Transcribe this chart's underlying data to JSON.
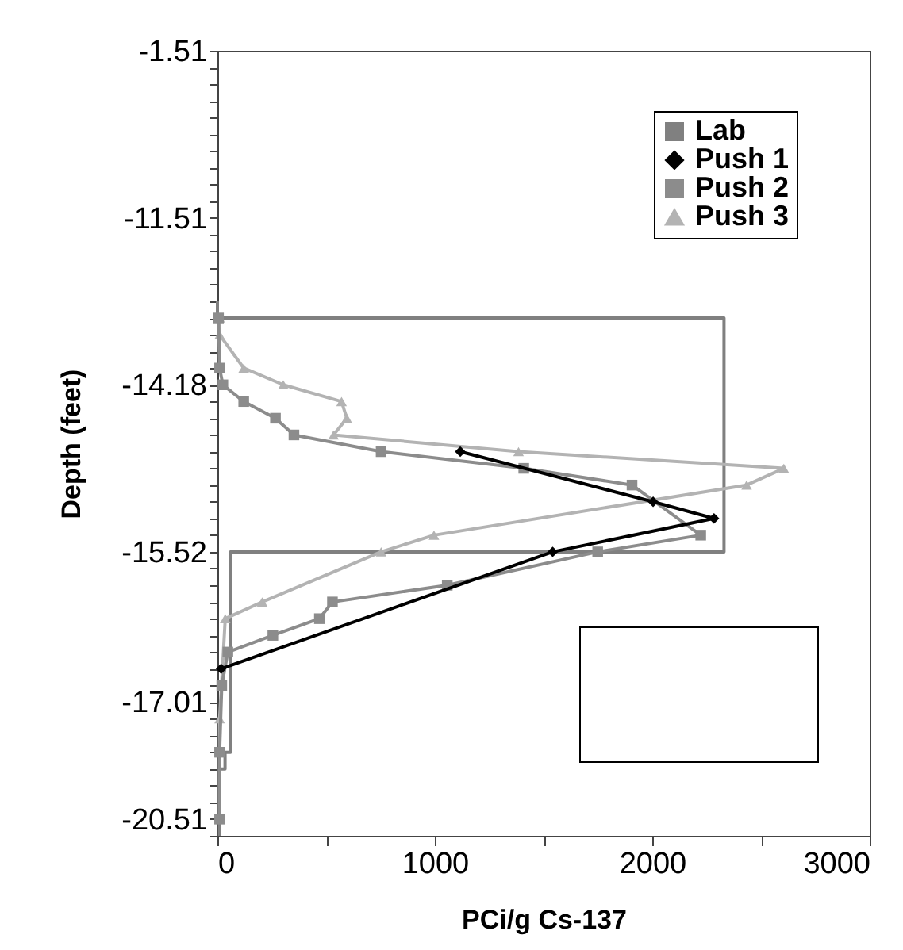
{
  "chart_data": {
    "type": "line",
    "orientation": "horizontal",
    "xlabel": "PCi/g  Cs-137",
    "ylabel": "Depth (feet)",
    "categories": [
      "-1.51",
      null,
      null,
      null,
      null,
      null,
      null,
      null,
      null,
      null,
      "-11.51",
      null,
      null,
      null,
      null,
      null,
      null,
      null,
      null,
      null,
      "-14.18",
      null,
      null,
      null,
      null,
      null,
      null,
      null,
      null,
      null,
      "-15.52",
      null,
      null,
      null,
      null,
      null,
      null,
      null,
      null,
      "-17.01",
      null,
      null,
      null,
      null,
      null,
      null,
      "-20.51",
      null
    ],
    "xlim": [
      0,
      3000
    ],
    "xticks": [
      0,
      {
        "value": 500,
        "label": null
      },
      1000,
      {
        "value": 1500,
        "label": null
      },
      2000,
      {
        "value": 2500,
        "label": null
      },
      3000
    ],
    "grid": false,
    "legend": "top right",
    "line_style": "solid",
    "series": [
      {
        "name": "Lab",
        "type": "step",
        "color": "#808080",
        "marker": "none",
        "values": [
          null,
          null,
          null,
          null,
          null,
          null,
          null,
          null,
          null,
          null,
          null,
          null,
          null,
          null,
          null,
          0,
          2330,
          2330,
          2330,
          2330,
          2330,
          2330,
          2330,
          2330,
          2330,
          2330,
          2330,
          2330,
          2330,
          2330,
          60,
          60,
          60,
          60,
          60,
          60,
          60,
          60,
          60,
          60,
          60,
          60,
          35,
          10,
          10,
          10,
          10,
          10
        ]
      },
      {
        "name": "Push 1",
        "color": "#000000",
        "marker": "diamond",
        "values": [
          null,
          null,
          null,
          null,
          null,
          null,
          null,
          null,
          null,
          null,
          null,
          null,
          null,
          null,
          null,
          null,
          null,
          null,
          null,
          null,
          null,
          null,
          null,
          null,
          1117,
          null,
          null,
          2004,
          2284,
          null,
          1542,
          null,
          null,
          null,
          null,
          null,
          null,
          17,
          null,
          null,
          null,
          null,
          null,
          null,
          null,
          null,
          null,
          null
        ]
      },
      {
        "name": "Push 2",
        "color": "#8c8c8c",
        "marker": "square",
        "values": [
          null,
          null,
          null,
          null,
          null,
          null,
          null,
          null,
          null,
          null,
          null,
          null,
          null,
          null,
          null,
          null,
          5,
          null,
          null,
          10,
          25,
          121,
          267,
          352,
          753,
          1409,
          1907,
          null,
          null,
          2223,
          1749,
          null,
          1057,
          529,
          469,
          255,
          48,
          null,
          20,
          null,
          null,
          null,
          10,
          null,
          null,
          null,
          10,
          null
        ]
      },
      {
        "name": "Push 3",
        "color": "#b3b3b3",
        "marker": "triangle",
        "values": [
          null,
          null,
          null,
          null,
          null,
          null,
          null,
          null,
          null,
          null,
          null,
          null,
          null,
          null,
          null,
          null,
          10,
          10,
          null,
          121,
          303,
          571,
          595,
          534,
          1385,
          2605,
          2434,
          null,
          null,
          996,
          753,
          null,
          null,
          206,
          36,
          null,
          null,
          null,
          null,
          null,
          10,
          null,
          null,
          null,
          null,
          null,
          10,
          null
        ]
      }
    ]
  }
}
